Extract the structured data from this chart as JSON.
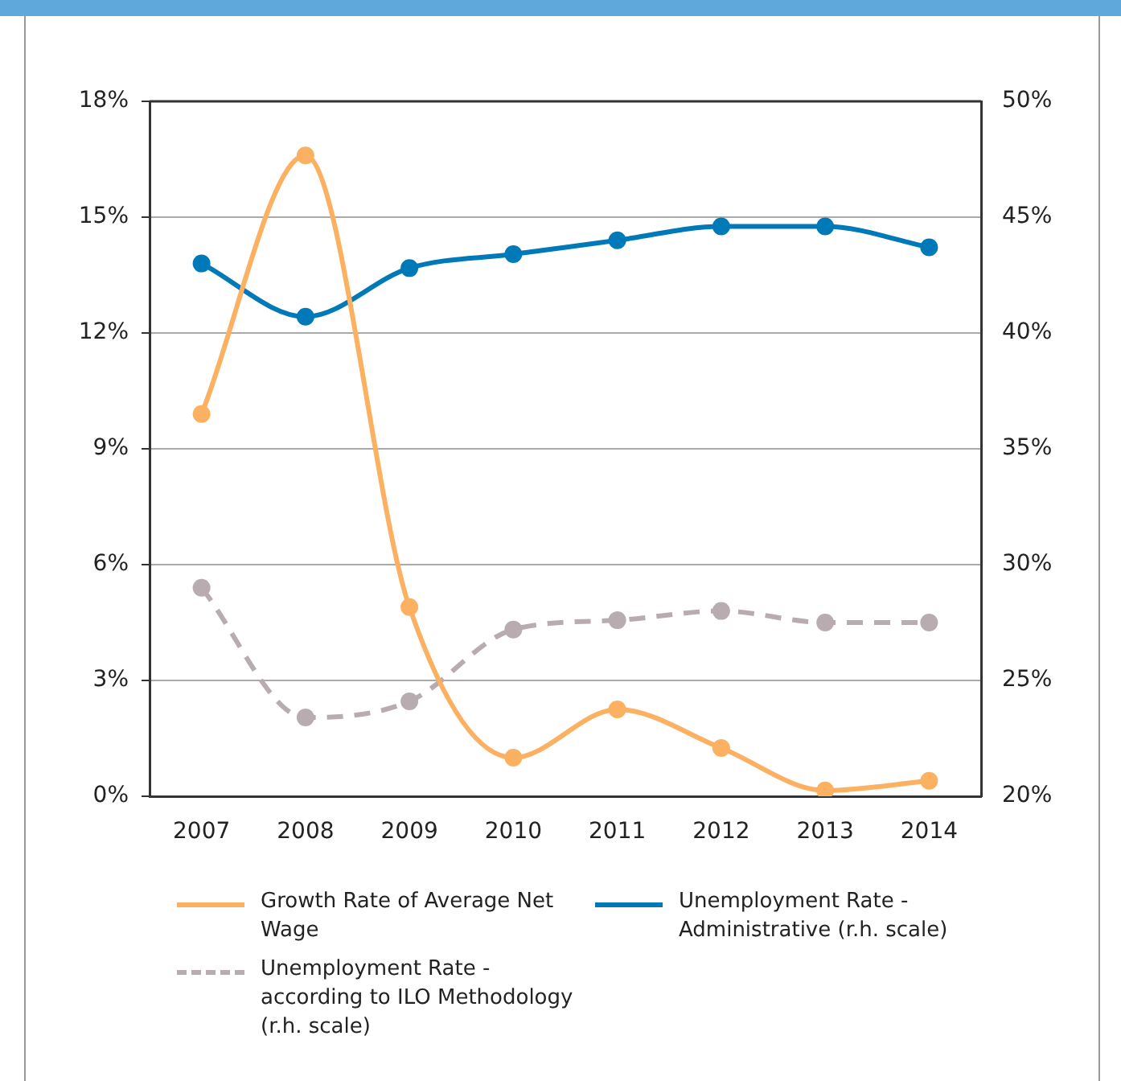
{
  "chart_data": {
    "type": "line",
    "categories": [
      "2007",
      "2008",
      "2009",
      "2010",
      "2011",
      "2012",
      "2013",
      "2014"
    ],
    "series": [
      {
        "name": "Growth Rate of Average Net Wage",
        "color": "#fbb161",
        "values": [
          9.9,
          16.6,
          4.9,
          1.0,
          2.25,
          1.25,
          0.15,
          0.4
        ]
      },
      {
        "name": "Unemployment Rate - Administrative (r.h. scale)",
        "color": "#0079b8",
        "axis": "y2",
        "values": [
          43.0,
          40.7,
          42.8,
          43.4,
          44.0,
          44.6,
          44.6,
          43.7
        ]
      },
      {
        "name": "Unemployment Rate - according to ILO Methodology (r.h. scale)",
        "color": "#b9acb1",
        "axis": "y2",
        "line_style": "dashed",
        "values": [
          29.0,
          23.4,
          24.1,
          27.2,
          27.6,
          28.0,
          27.5,
          27.5
        ]
      }
    ],
    "ylim": [
      0,
      18
    ],
    "yticks": [
      {
        "value": 0,
        "label": "0%"
      },
      {
        "value": 3,
        "label": "3%"
      },
      {
        "value": 6,
        "label": "6%"
      },
      {
        "value": 9,
        "label": "9%"
      },
      {
        "value": 12,
        "label": "12%"
      },
      {
        "value": 15,
        "label": "15%"
      },
      {
        "value": 18,
        "label": "18%"
      }
    ],
    "y2lim": [
      20,
      50
    ],
    "y2ticks": [
      {
        "value": 20,
        "label": "20%"
      },
      {
        "value": 25,
        "label": "25%"
      },
      {
        "value": 30,
        "label": "30%"
      },
      {
        "value": 35,
        "label": "35%"
      },
      {
        "value": 40,
        "label": "40%"
      },
      {
        "value": 45,
        "label": "45%"
      },
      {
        "value": 50,
        "label": "50%"
      }
    ],
    "grid": "y",
    "legend": "bottom",
    "marker": "circle",
    "line_style": "solid"
  }
}
